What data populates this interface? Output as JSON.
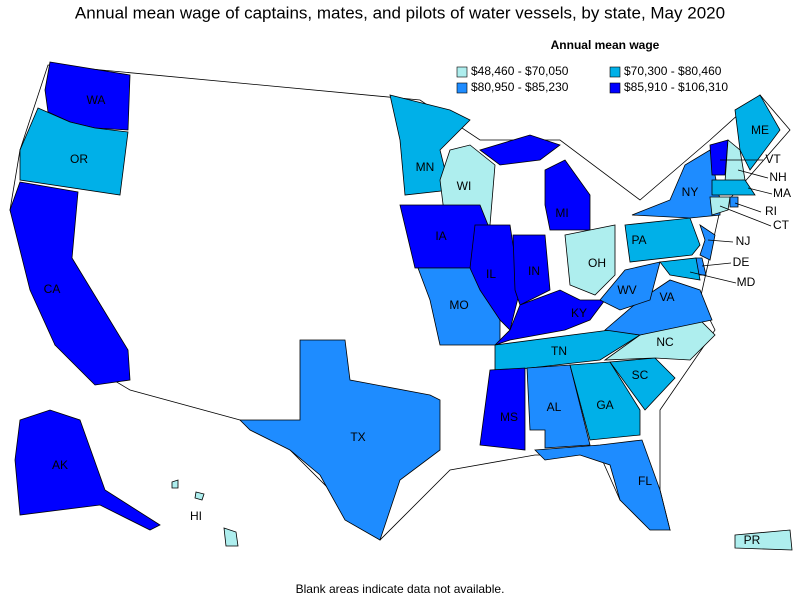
{
  "title": "Annual mean wage of captains, mates, and pilots of water vessels, by state, May 2020",
  "legend": {
    "title": "Annual mean wage",
    "classes": [
      {
        "label": "$48,460 - $70,050",
        "color": "#aeeeee"
      },
      {
        "label": "$70,300 - $80,460",
        "color": "#00b0e8"
      },
      {
        "label": "$80,950 - $85,230",
        "color": "#1e8cff"
      },
      {
        "label": "$85,910 - $106,310",
        "color": "#0000ff"
      }
    ]
  },
  "states": [
    {
      "abbr": "WA",
      "class": 3
    },
    {
      "abbr": "OR",
      "class": 1
    },
    {
      "abbr": "CA",
      "class": 3
    },
    {
      "abbr": "AK",
      "class": 3
    },
    {
      "abbr": "HI",
      "class": 0
    },
    {
      "abbr": "TX",
      "class": 2
    },
    {
      "abbr": "MN",
      "class": 1
    },
    {
      "abbr": "WI",
      "class": 0
    },
    {
      "abbr": "IA",
      "class": 3
    },
    {
      "abbr": "MO",
      "class": 2
    },
    {
      "abbr": "IL",
      "class": 3
    },
    {
      "abbr": "MI",
      "class": 3
    },
    {
      "abbr": "IN",
      "class": 3
    },
    {
      "abbr": "OH",
      "class": 0
    },
    {
      "abbr": "KY",
      "class": 3
    },
    {
      "abbr": "TN",
      "class": 1
    },
    {
      "abbr": "MS",
      "class": 3
    },
    {
      "abbr": "AL",
      "class": 2
    },
    {
      "abbr": "GA",
      "class": 1
    },
    {
      "abbr": "FL",
      "class": 2
    },
    {
      "abbr": "SC",
      "class": 1
    },
    {
      "abbr": "NC",
      "class": 0
    },
    {
      "abbr": "VA",
      "class": 2
    },
    {
      "abbr": "WV",
      "class": 2
    },
    {
      "abbr": "PA",
      "class": 1
    },
    {
      "abbr": "NY",
      "class": 2
    },
    {
      "abbr": "ME",
      "class": 1
    },
    {
      "abbr": "VT",
      "class": 3
    },
    {
      "abbr": "NH",
      "class": 0
    },
    {
      "abbr": "MA",
      "class": 1
    },
    {
      "abbr": "CT",
      "class": 0
    },
    {
      "abbr": "RI",
      "class": 2
    },
    {
      "abbr": "NJ",
      "class": 2
    },
    {
      "abbr": "DE",
      "class": 2
    },
    {
      "abbr": "MD",
      "class": 1
    },
    {
      "abbr": "PR",
      "class": 0
    }
  ],
  "note": "Blank areas indicate data not available."
}
